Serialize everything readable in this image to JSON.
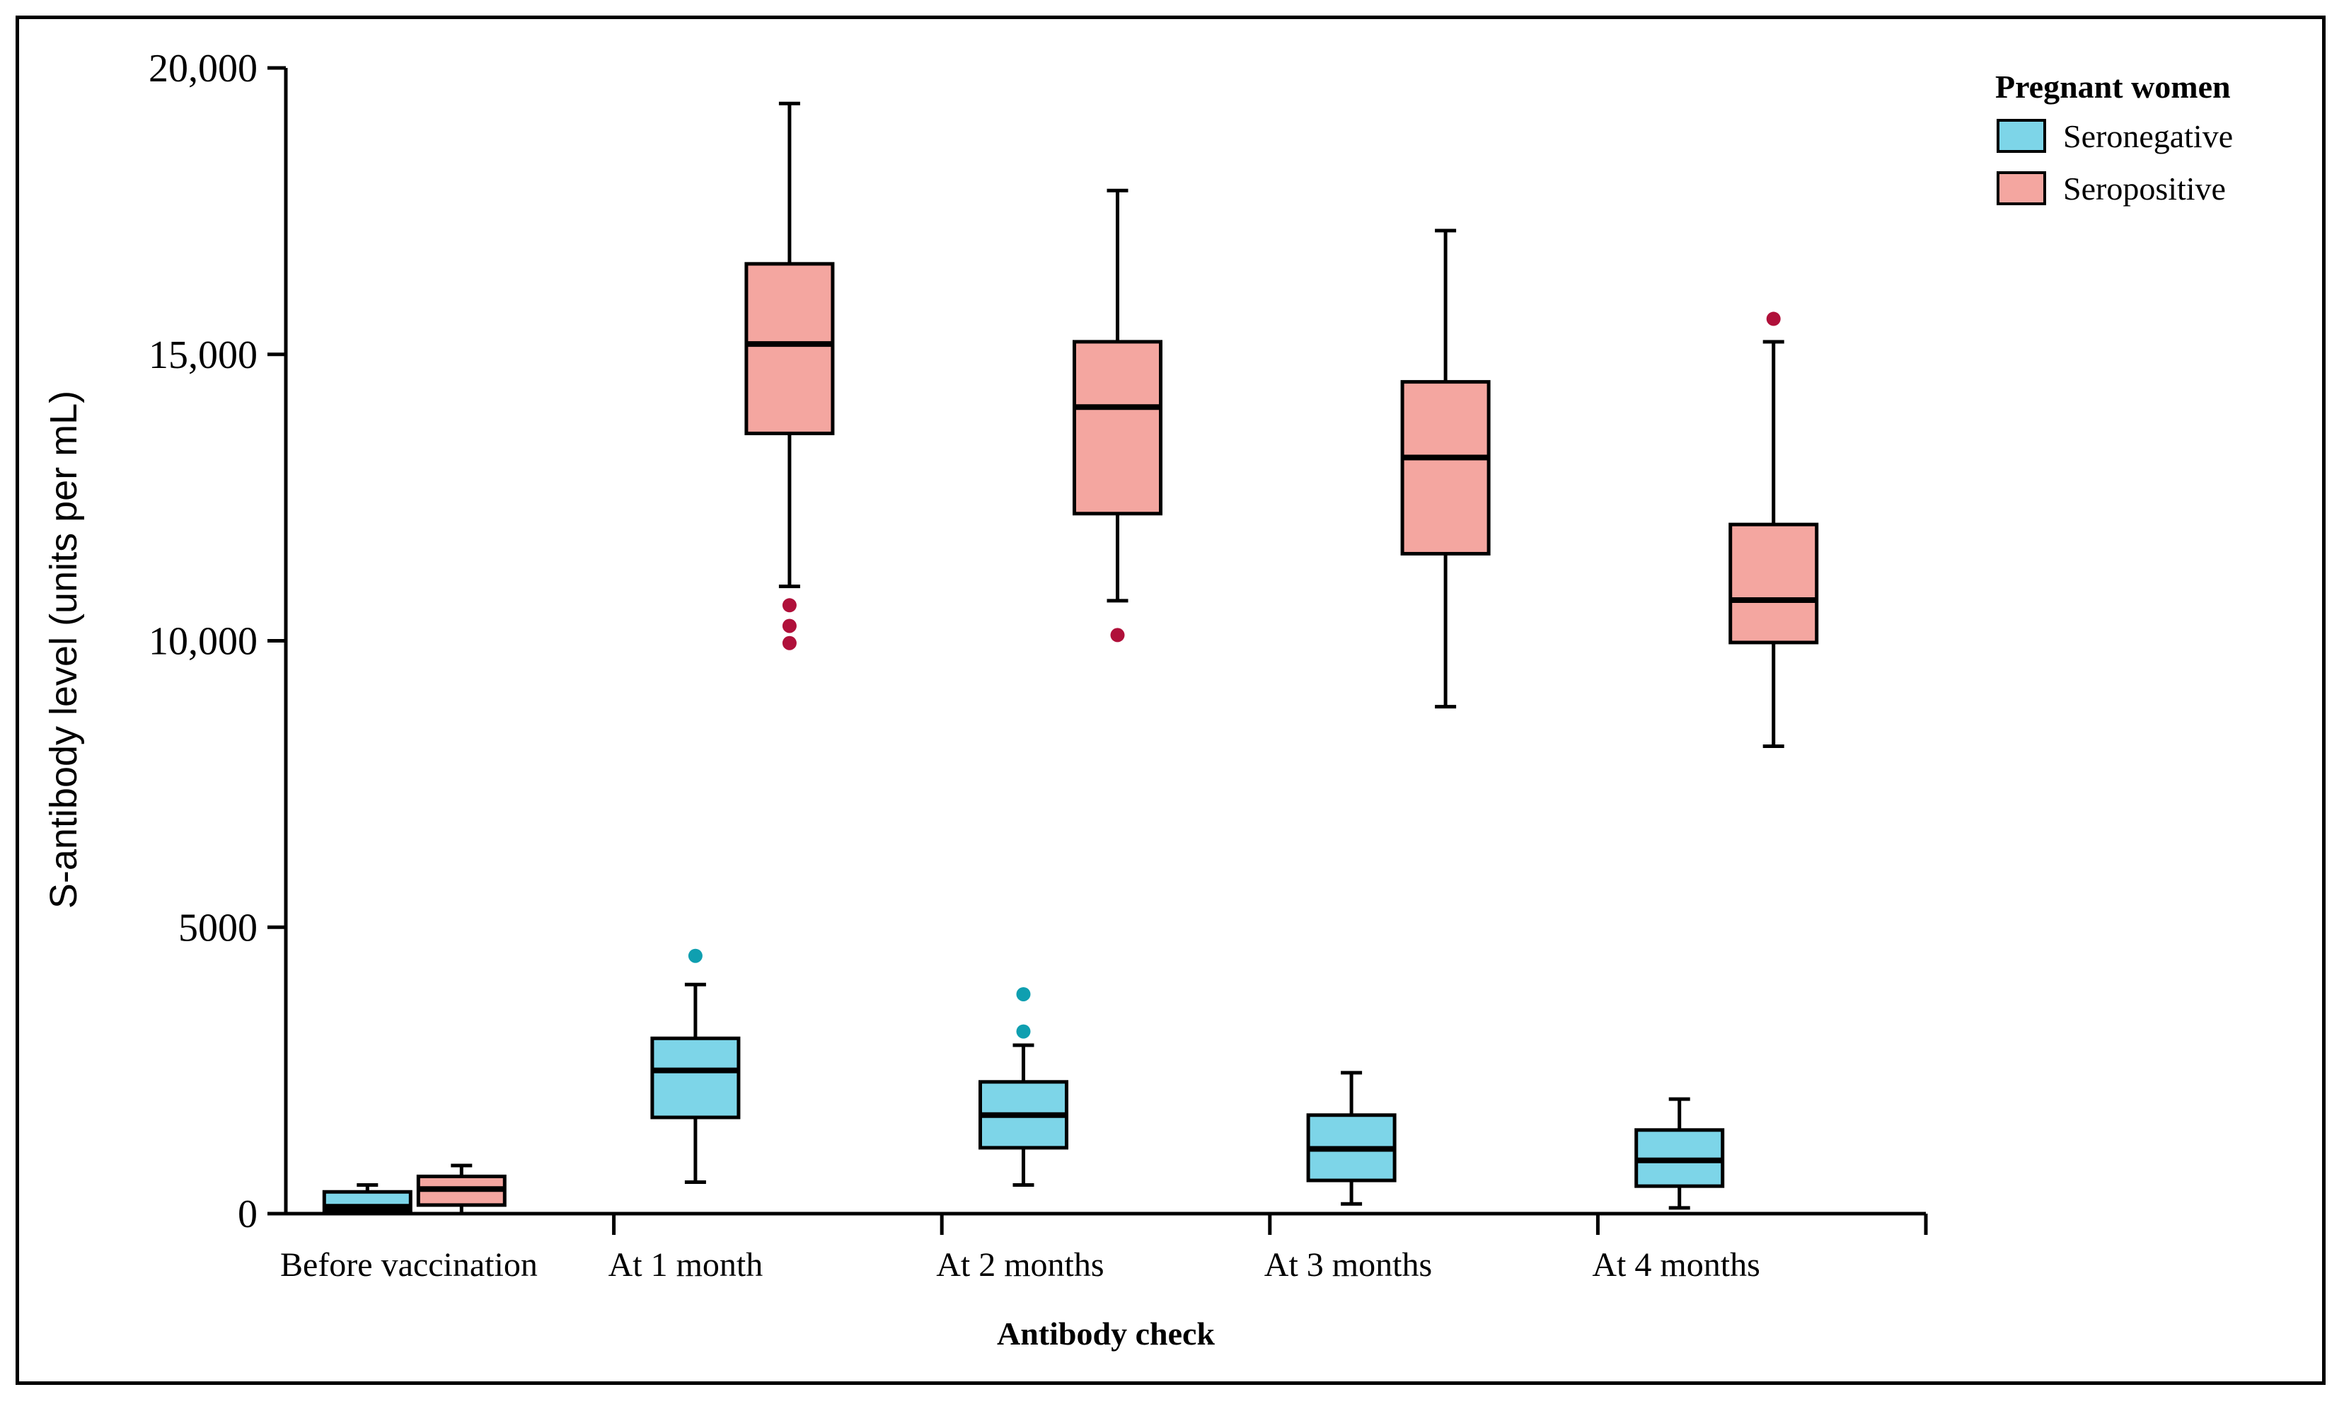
{
  "chart_data": {
    "type": "box",
    "title": "",
    "xlabel": "Antibody check",
    "ylabel": "S-antibody level (units per mL)",
    "ylim": [
      0,
      20000
    ],
    "yticks": [
      {
        "value": 0,
        "label": "0"
      },
      {
        "value": 5000,
        "label": "5000"
      },
      {
        "value": 10000,
        "label": "10,000"
      },
      {
        "value": 15000,
        "label": "15,000"
      },
      {
        "value": 20000,
        "label": "20,000"
      }
    ],
    "categories": [
      "Before vaccination",
      "At 1 month",
      "At 2 months",
      "At 3 months",
      "At 4 months"
    ],
    "legend": {
      "title": "Pregnant women",
      "position": "top-right",
      "entries": [
        {
          "name": "Seronegative",
          "color": "#7dd5e8"
        },
        {
          "name": "Seropositive",
          "color": "#f4a6a0"
        }
      ]
    },
    "series": [
      {
        "name": "Seronegative",
        "color": "#7dd5e8",
        "outlier_color": "#0f9fb0",
        "boxes": [
          {
            "category": "Before vaccination",
            "whisker_low": 0,
            "q1": 60,
            "median": 120,
            "q3": 380,
            "whisker_high": 500,
            "outliers": []
          },
          {
            "category": "At 1 month",
            "whisker_low": 550,
            "q1": 1680,
            "median": 2500,
            "q3": 3060,
            "whisker_high": 4000,
            "outliers": [
              4500
            ]
          },
          {
            "category": "At 2 months",
            "whisker_low": 500,
            "q1": 1150,
            "median": 1720,
            "q3": 2300,
            "whisker_high": 2940,
            "outliers": [
              3180,
              3830
            ]
          },
          {
            "category": "At 3 months",
            "whisker_low": 170,
            "q1": 580,
            "median": 1130,
            "q3": 1720,
            "whisker_high": 2460,
            "outliers": []
          },
          {
            "category": "At 4 months",
            "whisker_low": 100,
            "q1": 480,
            "median": 930,
            "q3": 1460,
            "whisker_high": 2000,
            "outliers": []
          }
        ]
      },
      {
        "name": "Seropositive",
        "color": "#f4a6a0",
        "outlier_color": "#b0103a",
        "boxes": [
          {
            "category": "Before vaccination",
            "whisker_low": 0,
            "q1": 150,
            "median": 430,
            "q3": 650,
            "whisker_high": 840,
            "outliers": []
          },
          {
            "category": "At 1 month",
            "whisker_low": 10950,
            "q1": 13620,
            "median": 15180,
            "q3": 16580,
            "whisker_high": 19380,
            "outliers": [
              9960,
              10260,
              10620
            ]
          },
          {
            "category": "At 2 months",
            "whisker_low": 10700,
            "q1": 12220,
            "median": 14080,
            "q3": 15220,
            "whisker_high": 17860,
            "outliers": [
              10100
            ]
          },
          {
            "category": "At 3 months",
            "whisker_low": 8850,
            "q1": 11520,
            "median": 13200,
            "q3": 14520,
            "whisker_high": 17160,
            "outliers": []
          },
          {
            "category": "At 4 months",
            "whisker_low": 8160,
            "q1": 9970,
            "median": 10710,
            "q3": 12030,
            "whisker_high": 15220,
            "outliers": [
              15620
            ]
          }
        ]
      }
    ]
  }
}
